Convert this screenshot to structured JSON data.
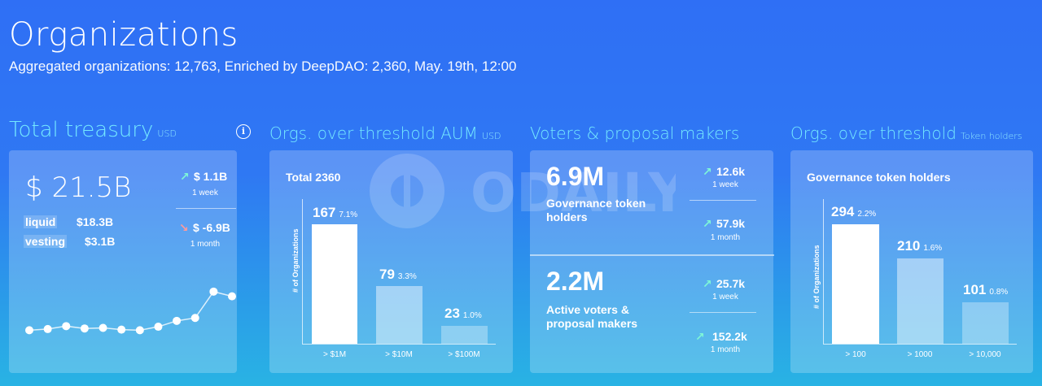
{
  "header": {
    "title": "Organizations",
    "subtitle": "Aggregated organizations: 12,763, Enriched by DeepDAO: 2,360, May. 19th, 12:00"
  },
  "watermark": "ODAILY",
  "treasury": {
    "title": "Total treasury",
    "unit": "USD",
    "info_icon": "info-icon",
    "total": "$ 21.5B",
    "liquid_label": "liquid",
    "liquid_value": "$18.3B",
    "vesting_label": "vesting",
    "vesting_value": "$3.1B",
    "week_delta": "$ 1.1B",
    "week_label": "1 week",
    "month_delta": "$ -6.9B",
    "month_label": "1 month",
    "sparkline": [
      0.12,
      0.14,
      0.19,
      0.15,
      0.16,
      0.13,
      0.12,
      0.18,
      0.28,
      0.33,
      0.78,
      0.7
    ]
  },
  "aum": {
    "title": "Orgs. over threshold AUM",
    "unit": "USD",
    "heading": "Total 2360",
    "y_axis_label": "# of Organizations",
    "bars": [
      {
        "value": "167",
        "pct": "7.1%",
        "label": "> $1M"
      },
      {
        "value": "79",
        "pct": "3.3%",
        "label": "> $10M"
      },
      {
        "value": "23",
        "pct": "1.0%",
        "label": "> $100M"
      }
    ]
  },
  "voters": {
    "title": "Voters & proposal makers",
    "holders_value": "6.9M",
    "holders_label": "Governance token holders",
    "holders_week": "12.6k",
    "holders_week_label": "1 week",
    "holders_month": "57.9k",
    "holders_month_label": "1 month",
    "active_value": "2.2M",
    "active_label": "Active voters & proposal makers",
    "active_week": "25.7k",
    "active_week_label": "1 week",
    "active_month": "152.2k",
    "active_month_label": "1 month"
  },
  "tokens": {
    "title": "Orgs. over threshold",
    "unit": "Token holders",
    "heading": "Governance token holders",
    "y_axis_label": "# of Organizations",
    "bars": [
      {
        "value": "294",
        "pct": "2.2%",
        "label": "> 100"
      },
      {
        "value": "210",
        "pct": "1.6%",
        "label": "> 1000"
      },
      {
        "value": "101",
        "pct": "0.8%",
        "label": "> 10,000"
      }
    ]
  },
  "colors": {
    "accent_title": "#74e8ff",
    "up_arrow": "#7ef7d7",
    "down_arrow": "#ff9a9a"
  }
}
